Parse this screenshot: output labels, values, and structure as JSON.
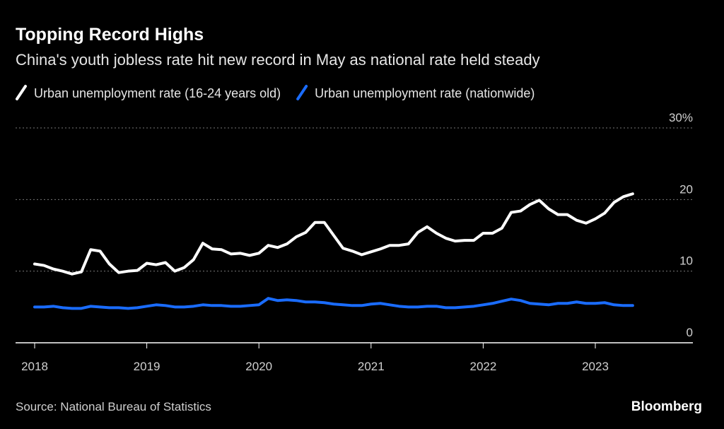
{
  "chart_data": {
    "type": "line",
    "title": "Topping Record Highs",
    "subtitle": "China's youth jobless rate hit new record in May as national rate held steady",
    "categories": [
      "2018",
      null,
      null,
      null,
      null,
      null,
      null,
      null,
      null,
      null,
      null,
      null,
      "2019",
      null,
      null,
      null,
      null,
      null,
      null,
      null,
      null,
      null,
      null,
      null,
      "2020",
      null,
      null,
      null,
      null,
      null,
      null,
      null,
      null,
      null,
      null,
      null,
      "2021",
      null,
      null,
      null,
      null,
      null,
      null,
      null,
      null,
      null,
      null,
      null,
      "2022",
      null,
      null,
      null,
      null,
      null,
      null,
      null,
      null,
      null,
      null,
      null,
      "2023",
      null,
      null,
      null,
      null
    ],
    "series": [
      {
        "name": "Urban unemployment rate (16-24 years old)",
        "color": "#ffffff",
        "values": [
          11.0,
          10.8,
          10.3,
          10.0,
          9.6,
          9.9,
          13.0,
          12.8,
          11.0,
          9.8,
          10.0,
          10.1,
          11.1,
          10.9,
          11.2,
          10.0,
          10.5,
          11.6,
          13.9,
          13.1,
          13.0,
          12.4,
          12.5,
          12.2,
          12.5,
          13.6,
          13.3,
          13.8,
          14.8,
          15.4,
          16.8,
          16.8,
          15.0,
          13.2,
          12.8,
          12.3,
          12.7,
          13.1,
          13.6,
          13.6,
          13.8,
          15.4,
          16.2,
          15.3,
          14.6,
          14.2,
          14.3,
          14.3,
          15.3,
          15.3,
          16.0,
          18.2,
          18.4,
          19.3,
          19.9,
          18.7,
          17.9,
          17.9,
          17.1,
          16.7,
          17.3,
          18.1,
          19.6,
          20.4,
          20.8
        ]
      },
      {
        "name": "Urban unemployment rate (nationwide)",
        "color": "#1a6cff",
        "values": [
          5.0,
          5.0,
          5.1,
          4.9,
          4.8,
          4.8,
          5.1,
          5.0,
          4.9,
          4.9,
          4.8,
          4.9,
          5.1,
          5.3,
          5.2,
          5.0,
          5.0,
          5.1,
          5.3,
          5.2,
          5.2,
          5.1,
          5.1,
          5.2,
          5.3,
          6.2,
          5.9,
          6.0,
          5.9,
          5.7,
          5.7,
          5.6,
          5.4,
          5.3,
          5.2,
          5.2,
          5.4,
          5.5,
          5.3,
          5.1,
          5.0,
          5.0,
          5.1,
          5.1,
          4.9,
          4.9,
          5.0,
          5.1,
          5.3,
          5.5,
          5.8,
          6.1,
          5.9,
          5.5,
          5.4,
          5.3,
          5.5,
          5.5,
          5.7,
          5.5,
          5.5,
          5.6,
          5.3,
          5.2,
          5.2
        ]
      }
    ],
    "ylim": [
      0,
      30
    ],
    "yticks": [
      0,
      10,
      20,
      {
        "value": 30,
        "label": "30%"
      }
    ],
    "grid": true,
    "source": "Source: National Bureau of Statistics",
    "brand": "Bloomberg"
  }
}
